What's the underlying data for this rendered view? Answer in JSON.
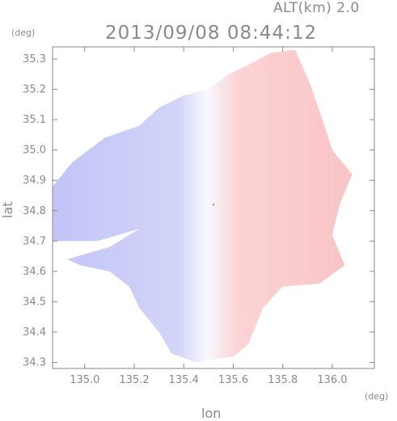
{
  "header": {
    "altitude_label": "ALT(km) 2.0",
    "timestamp": "2013/09/08 08:44:12"
  },
  "chart_data": {
    "type": "heatmap",
    "title": "2013/09/08 08:44:12",
    "subtitle": "ALT(km) 2.0",
    "xlabel": "lon",
    "ylabel": "lat",
    "x_unit": "(deg)",
    "y_unit": "(deg)",
    "xlim": [
      134.87,
      136.17
    ],
    "ylim": [
      34.28,
      35.34
    ],
    "x_ticks": [
      135.0,
      135.2,
      135.4,
      135.6,
      135.8,
      136.0
    ],
    "x_tick_labels": [
      "135.0",
      "135.2",
      "135.4",
      "135.6",
      "135.8",
      "136.0"
    ],
    "y_ticks": [
      34.3,
      34.4,
      34.5,
      34.6,
      34.7,
      34.8,
      34.9,
      35.0,
      35.1,
      35.2,
      35.3
    ],
    "y_tick_labels": [
      "34.3",
      "34.4",
      "34.5",
      "34.6",
      "34.7",
      "34.8",
      "34.9",
      "35.0",
      "35.1",
      "35.2",
      "35.3"
    ],
    "radar_center": {
      "lon": 135.52,
      "lat": 34.82
    },
    "colors": {
      "negative": "#c2c4f7",
      "zero": "#f8f8ff",
      "positive": "#f9c4c6",
      "axis": "#8a8a8a"
    },
    "grid": false
  }
}
